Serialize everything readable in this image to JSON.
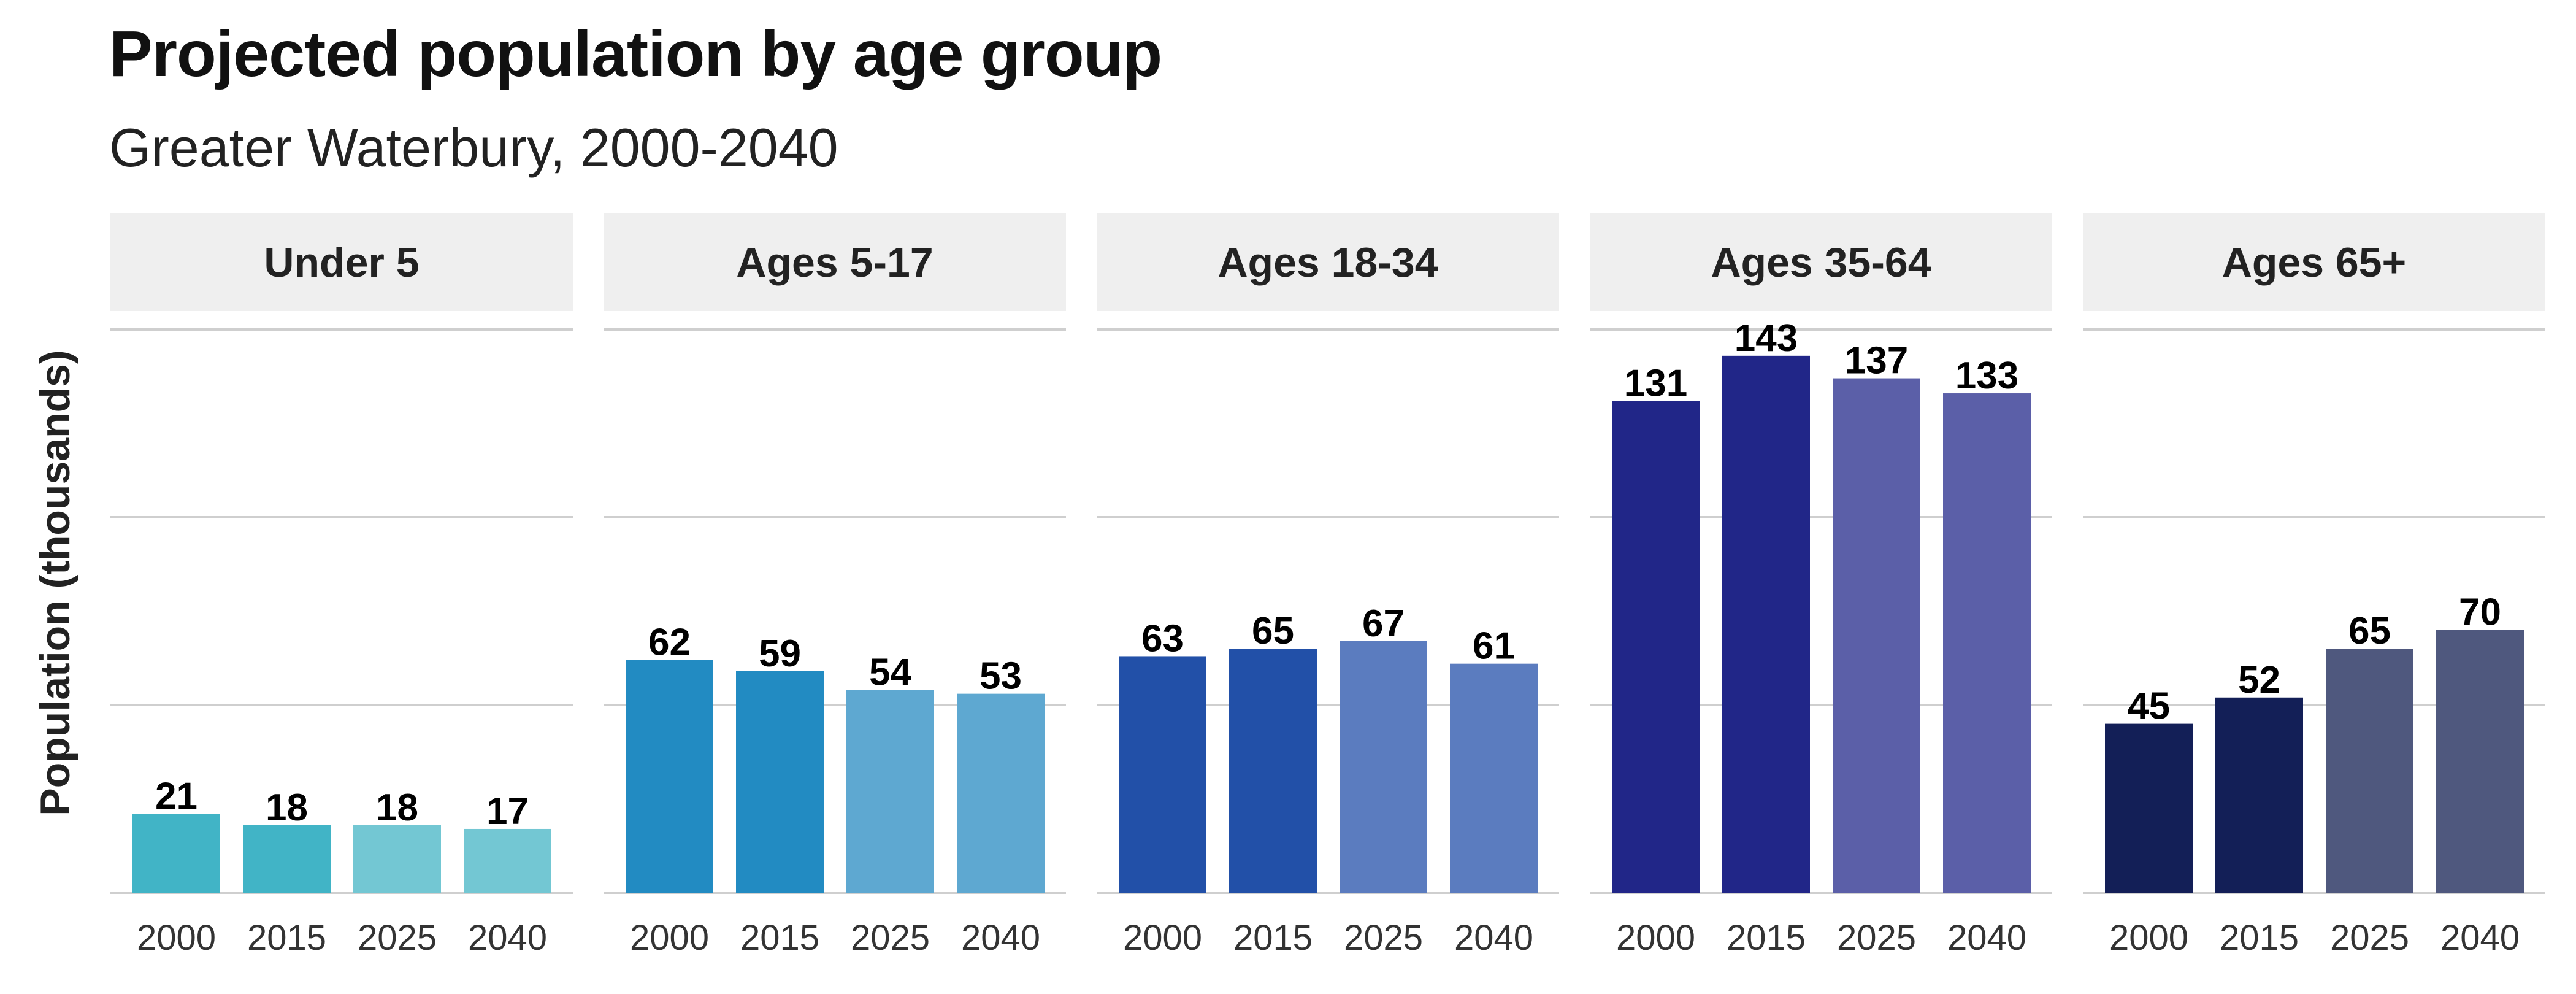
{
  "chart_data": {
    "type": "bar",
    "title": "Projected population by age group",
    "subtitle": "Greater Waterbury, 2000-2040",
    "ylabel": "Population (thousands)",
    "xlabel": "",
    "categories": [
      "2000",
      "2015",
      "2025",
      "2040"
    ],
    "ylim": [
      0,
      150
    ],
    "grid": true,
    "legend": "none",
    "panels": [
      {
        "name": "Under 5",
        "values": [
          21,
          18,
          18,
          17
        ],
        "colors": [
          "#41b4c6",
          "#41b4c6",
          "#73c7d3",
          "#73c7d3"
        ]
      },
      {
        "name": "Ages 5-17",
        "values": [
          62,
          59,
          54,
          53
        ],
        "colors": [
          "#228bc2",
          "#228bc2",
          "#5ea8d1",
          "#5ea8d1"
        ]
      },
      {
        "name": "Ages 18-34",
        "values": [
          63,
          65,
          67,
          61
        ],
        "colors": [
          "#2250a8",
          "#2250a8",
          "#5b7cbf",
          "#5b7cbf"
        ]
      },
      {
        "name": "Ages 35-64",
        "values": [
          131,
          143,
          137,
          133
        ],
        "colors": [
          "#212688",
          "#212688",
          "#5b5fa8",
          "#5b5fa8"
        ]
      },
      {
        "name": "Ages 65+",
        "values": [
          45,
          52,
          65,
          70
        ],
        "colors": [
          "#131f57",
          "#131f57",
          "#4f587e",
          "#4f587e"
        ]
      }
    ]
  }
}
